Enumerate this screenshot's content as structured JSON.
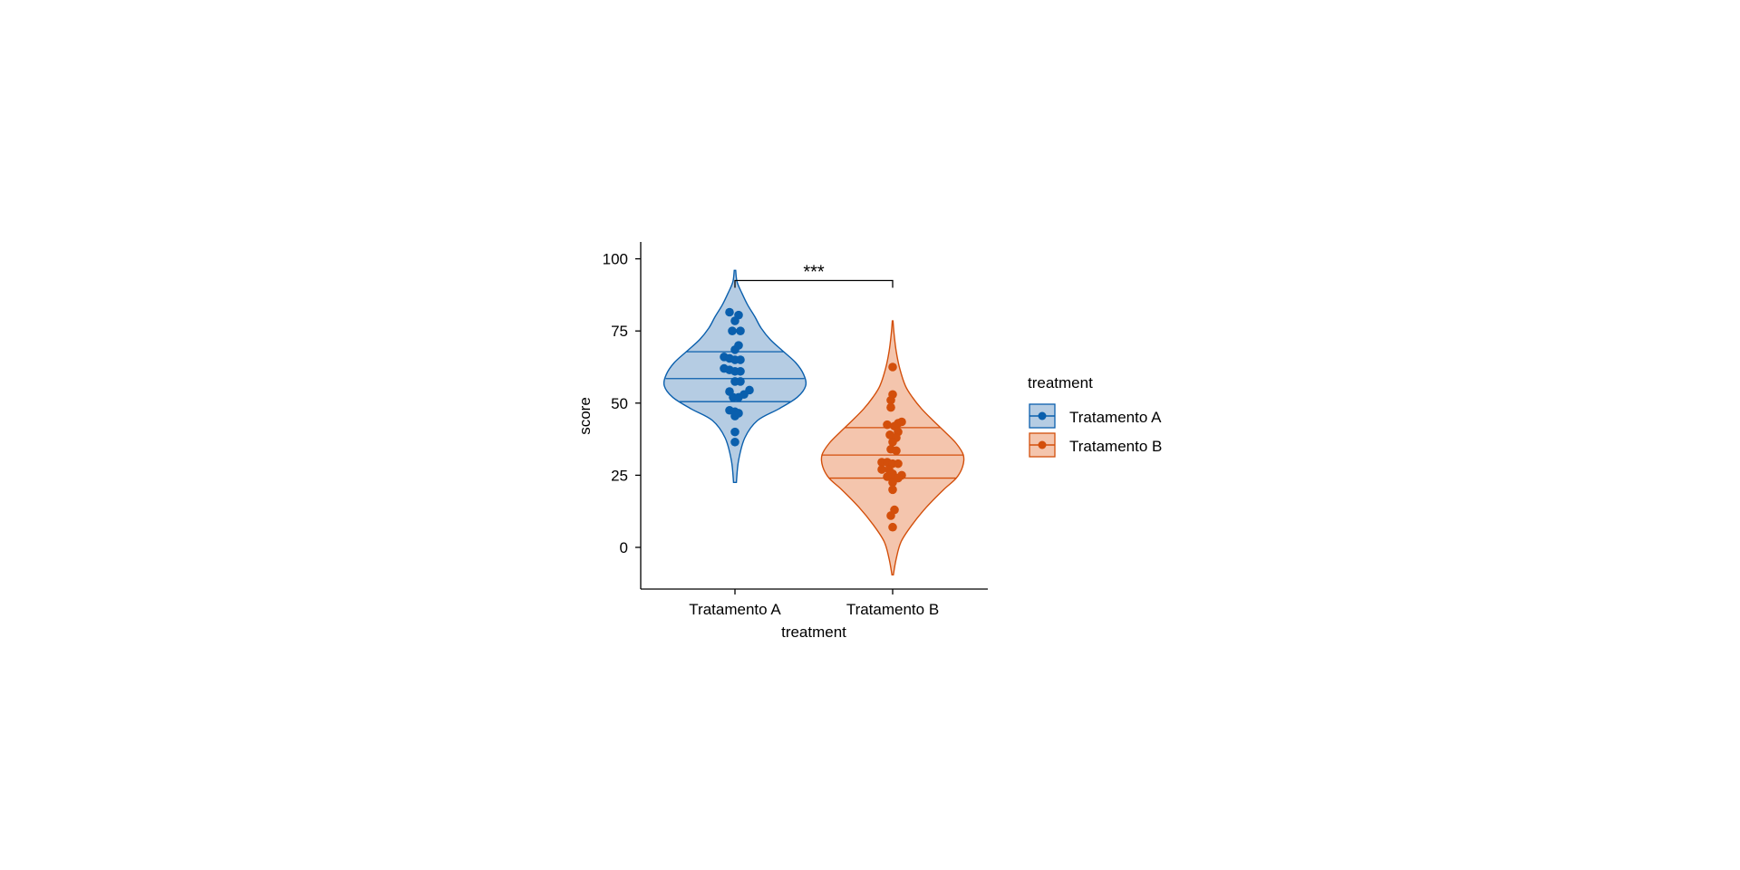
{
  "chart_data": {
    "type": "violin",
    "xlabel": "treatment",
    "ylabel": "score",
    "categories": [
      "Tratamento A",
      "Tratamento B"
    ],
    "y_ticks": [
      0,
      25,
      50,
      75,
      100
    ],
    "ylim": [
      -14,
      106
    ],
    "legend": {
      "title": "treatment",
      "placement": "right",
      "entries": [
        "Tratamento A",
        "Tratamento B"
      ]
    },
    "significance": {
      "label": "***",
      "groups": [
        "Tratamento A",
        "Tratamento B"
      ],
      "y": 92.5
    },
    "colors": {
      "Tratamento A": {
        "line": "#0a5fad",
        "fill": "#b5cce3",
        "point": "#0a5fad"
      },
      "Tratamento B": {
        "line": "#d34f0b",
        "fill": "#f4c5ad",
        "point": "#d34f0b"
      }
    },
    "series": [
      {
        "name": "Tratamento A",
        "violin_range": [
          22.5,
          96
        ],
        "quartiles": [
          50.5,
          58.5,
          67.8
        ],
        "density": [
          [
            22.5,
            0.02
          ],
          [
            30,
            0.05
          ],
          [
            38,
            0.14
          ],
          [
            44,
            0.32
          ],
          [
            48,
            0.62
          ],
          [
            52,
            0.88
          ],
          [
            56,
            1.0
          ],
          [
            60,
            0.97
          ],
          [
            64,
            0.86
          ],
          [
            68,
            0.68
          ],
          [
            72,
            0.5
          ],
          [
            76,
            0.37
          ],
          [
            80,
            0.28
          ],
          [
            84,
            0.18
          ],
          [
            88,
            0.1
          ],
          [
            92,
            0.03
          ],
          [
            96,
            0.01
          ]
        ],
        "points": [
          {
            "y": 81.5,
            "dx": -0.06
          },
          {
            "y": 80.5,
            "dx": 0.04
          },
          {
            "y": 78.5,
            "dx": 0.0
          },
          {
            "y": 75,
            "dx": -0.03
          },
          {
            "y": 75,
            "dx": 0.06
          },
          {
            "y": 70,
            "dx": 0.04
          },
          {
            "y": 68.5,
            "dx": 0.0
          },
          {
            "y": 66,
            "dx": -0.12
          },
          {
            "y": 65.5,
            "dx": -0.06
          },
          {
            "y": 65,
            "dx": 0.0
          },
          {
            "y": 65,
            "dx": 0.06
          },
          {
            "y": 62,
            "dx": -0.12
          },
          {
            "y": 61.5,
            "dx": -0.06
          },
          {
            "y": 61,
            "dx": 0.0
          },
          {
            "y": 61,
            "dx": 0.06
          },
          {
            "y": 57.5,
            "dx": 0.0
          },
          {
            "y": 57.5,
            "dx": 0.06
          },
          {
            "y": 54.5,
            "dx": 0.16
          },
          {
            "y": 54,
            "dx": -0.06
          },
          {
            "y": 53,
            "dx": 0.1
          },
          {
            "y": 52,
            "dx": -0.02
          },
          {
            "y": 52,
            "dx": 0.04
          },
          {
            "y": 47.5,
            "dx": -0.06
          },
          {
            "y": 47,
            "dx": 0.0
          },
          {
            "y": 46.5,
            "dx": 0.04
          },
          {
            "y": 45.5,
            "dx": 0.0
          },
          {
            "y": 40,
            "dx": 0.0
          },
          {
            "y": 36.5,
            "dx": 0.0
          }
        ]
      },
      {
        "name": "Tratamento B",
        "violin_range": [
          -9.5,
          78.5
        ],
        "quartiles": [
          24,
          32,
          41.5
        ],
        "density": [
          [
            -9.5,
            0.01
          ],
          [
            -4,
            0.05
          ],
          [
            2,
            0.12
          ],
          [
            8,
            0.28
          ],
          [
            14,
            0.48
          ],
          [
            20,
            0.72
          ],
          [
            24,
            0.9
          ],
          [
            28,
            0.99
          ],
          [
            32,
            1.0
          ],
          [
            36,
            0.9
          ],
          [
            40,
            0.74
          ],
          [
            44,
            0.57
          ],
          [
            48,
            0.41
          ],
          [
            52,
            0.28
          ],
          [
            56,
            0.18
          ],
          [
            62,
            0.1
          ],
          [
            68,
            0.05
          ],
          [
            74,
            0.02
          ],
          [
            78.5,
            0.005
          ]
        ],
        "points": [
          {
            "y": 62.5,
            "dx": 0.0
          },
          {
            "y": 53,
            "dx": 0.0
          },
          {
            "y": 51,
            "dx": -0.02
          },
          {
            "y": 48.5,
            "dx": -0.02
          },
          {
            "y": 43.5,
            "dx": 0.1
          },
          {
            "y": 43,
            "dx": 0.06
          },
          {
            "y": 42.5,
            "dx": -0.06
          },
          {
            "y": 42,
            "dx": 0.02
          },
          {
            "y": 40,
            "dx": 0.06
          },
          {
            "y": 39,
            "dx": -0.03
          },
          {
            "y": 38,
            "dx": 0.04
          },
          {
            "y": 36.5,
            "dx": 0.0
          },
          {
            "y": 34,
            "dx": -0.02
          },
          {
            "y": 33.5,
            "dx": 0.04
          },
          {
            "y": 29.5,
            "dx": -0.12
          },
          {
            "y": 29.5,
            "dx": -0.06
          },
          {
            "y": 29,
            "dx": 0.0
          },
          {
            "y": 29,
            "dx": 0.06
          },
          {
            "y": 27,
            "dx": -0.12
          },
          {
            "y": 27,
            "dx": -0.04
          },
          {
            "y": 25.5,
            "dx": 0.0
          },
          {
            "y": 25,
            "dx": 0.1
          },
          {
            "y": 24.5,
            "dx": -0.06
          },
          {
            "y": 24,
            "dx": 0.06
          },
          {
            "y": 22.5,
            "dx": 0.0
          },
          {
            "y": 20,
            "dx": 0.0
          },
          {
            "y": 13,
            "dx": 0.02
          },
          {
            "y": 11,
            "dx": -0.02
          },
          {
            "y": 7,
            "dx": 0.0
          }
        ]
      }
    ]
  }
}
